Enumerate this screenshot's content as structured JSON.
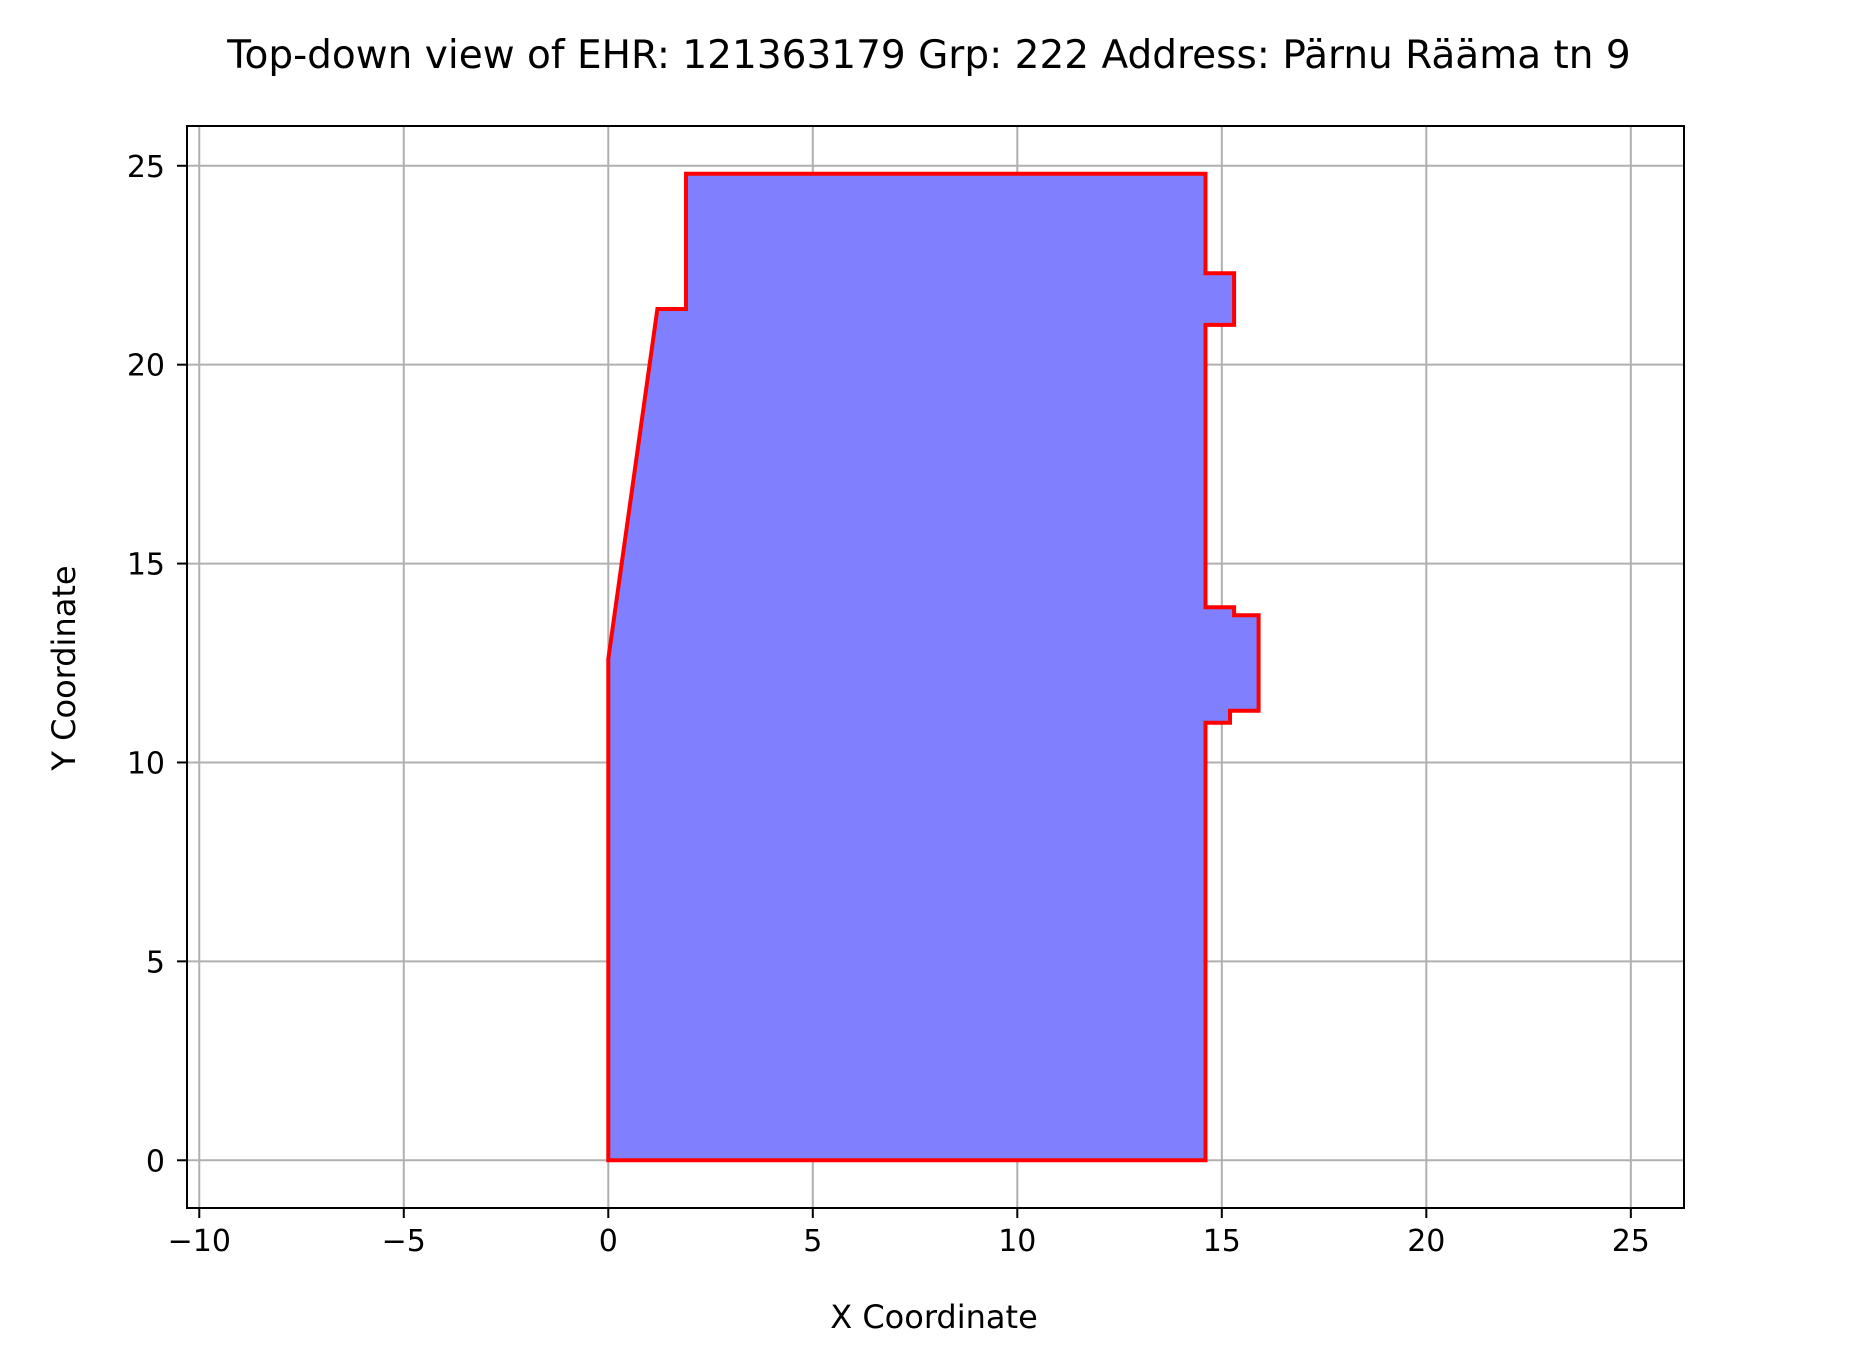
{
  "chart_data": {
    "type": "area",
    "title": "Top-down view of EHR: 121363179 Grp: 222 Address: Pärnu Rääma tn 9",
    "xlabel": "X Coordinate",
    "ylabel": "Y Coordinate",
    "xlim": [
      -10.3,
      26.3
    ],
    "ylim": [
      -1.2,
      26.0
    ],
    "xticks": [
      -10,
      -5,
      0,
      5,
      10,
      15,
      20,
      25
    ],
    "xtick_labels": [
      "−10",
      "−5",
      "0",
      "5",
      "10",
      "15",
      "20",
      "25"
    ],
    "yticks": [
      0,
      5,
      10,
      15,
      20,
      25
    ],
    "ytick_labels": [
      "0",
      "5",
      "10",
      "15",
      "20",
      "25"
    ],
    "grid": true,
    "polygon": {
      "fill_color": "#8080ff",
      "edge_color": "#ff0000",
      "points": [
        {
          "x": 0.0,
          "y": 0.0
        },
        {
          "x": 14.6,
          "y": 0.0
        },
        {
          "x": 14.6,
          "y": 11.0
        },
        {
          "x": 15.2,
          "y": 11.0
        },
        {
          "x": 15.2,
          "y": 11.3
        },
        {
          "x": 15.9,
          "y": 11.3
        },
        {
          "x": 15.9,
          "y": 13.7
        },
        {
          "x": 15.3,
          "y": 13.7
        },
        {
          "x": 15.3,
          "y": 13.9
        },
        {
          "x": 14.6,
          "y": 13.9
        },
        {
          "x": 14.6,
          "y": 21.0
        },
        {
          "x": 15.3,
          "y": 21.0
        },
        {
          "x": 15.3,
          "y": 22.3
        },
        {
          "x": 14.6,
          "y": 22.3
        },
        {
          "x": 14.6,
          "y": 24.8
        },
        {
          "x": 1.9,
          "y": 24.8
        },
        {
          "x": 1.9,
          "y": 21.4
        },
        {
          "x": 1.2,
          "y": 21.4
        },
        {
          "x": 0.0,
          "y": 12.6
        }
      ]
    },
    "colors": {
      "grid": "#b0b0b0",
      "axes": "#000000"
    }
  }
}
